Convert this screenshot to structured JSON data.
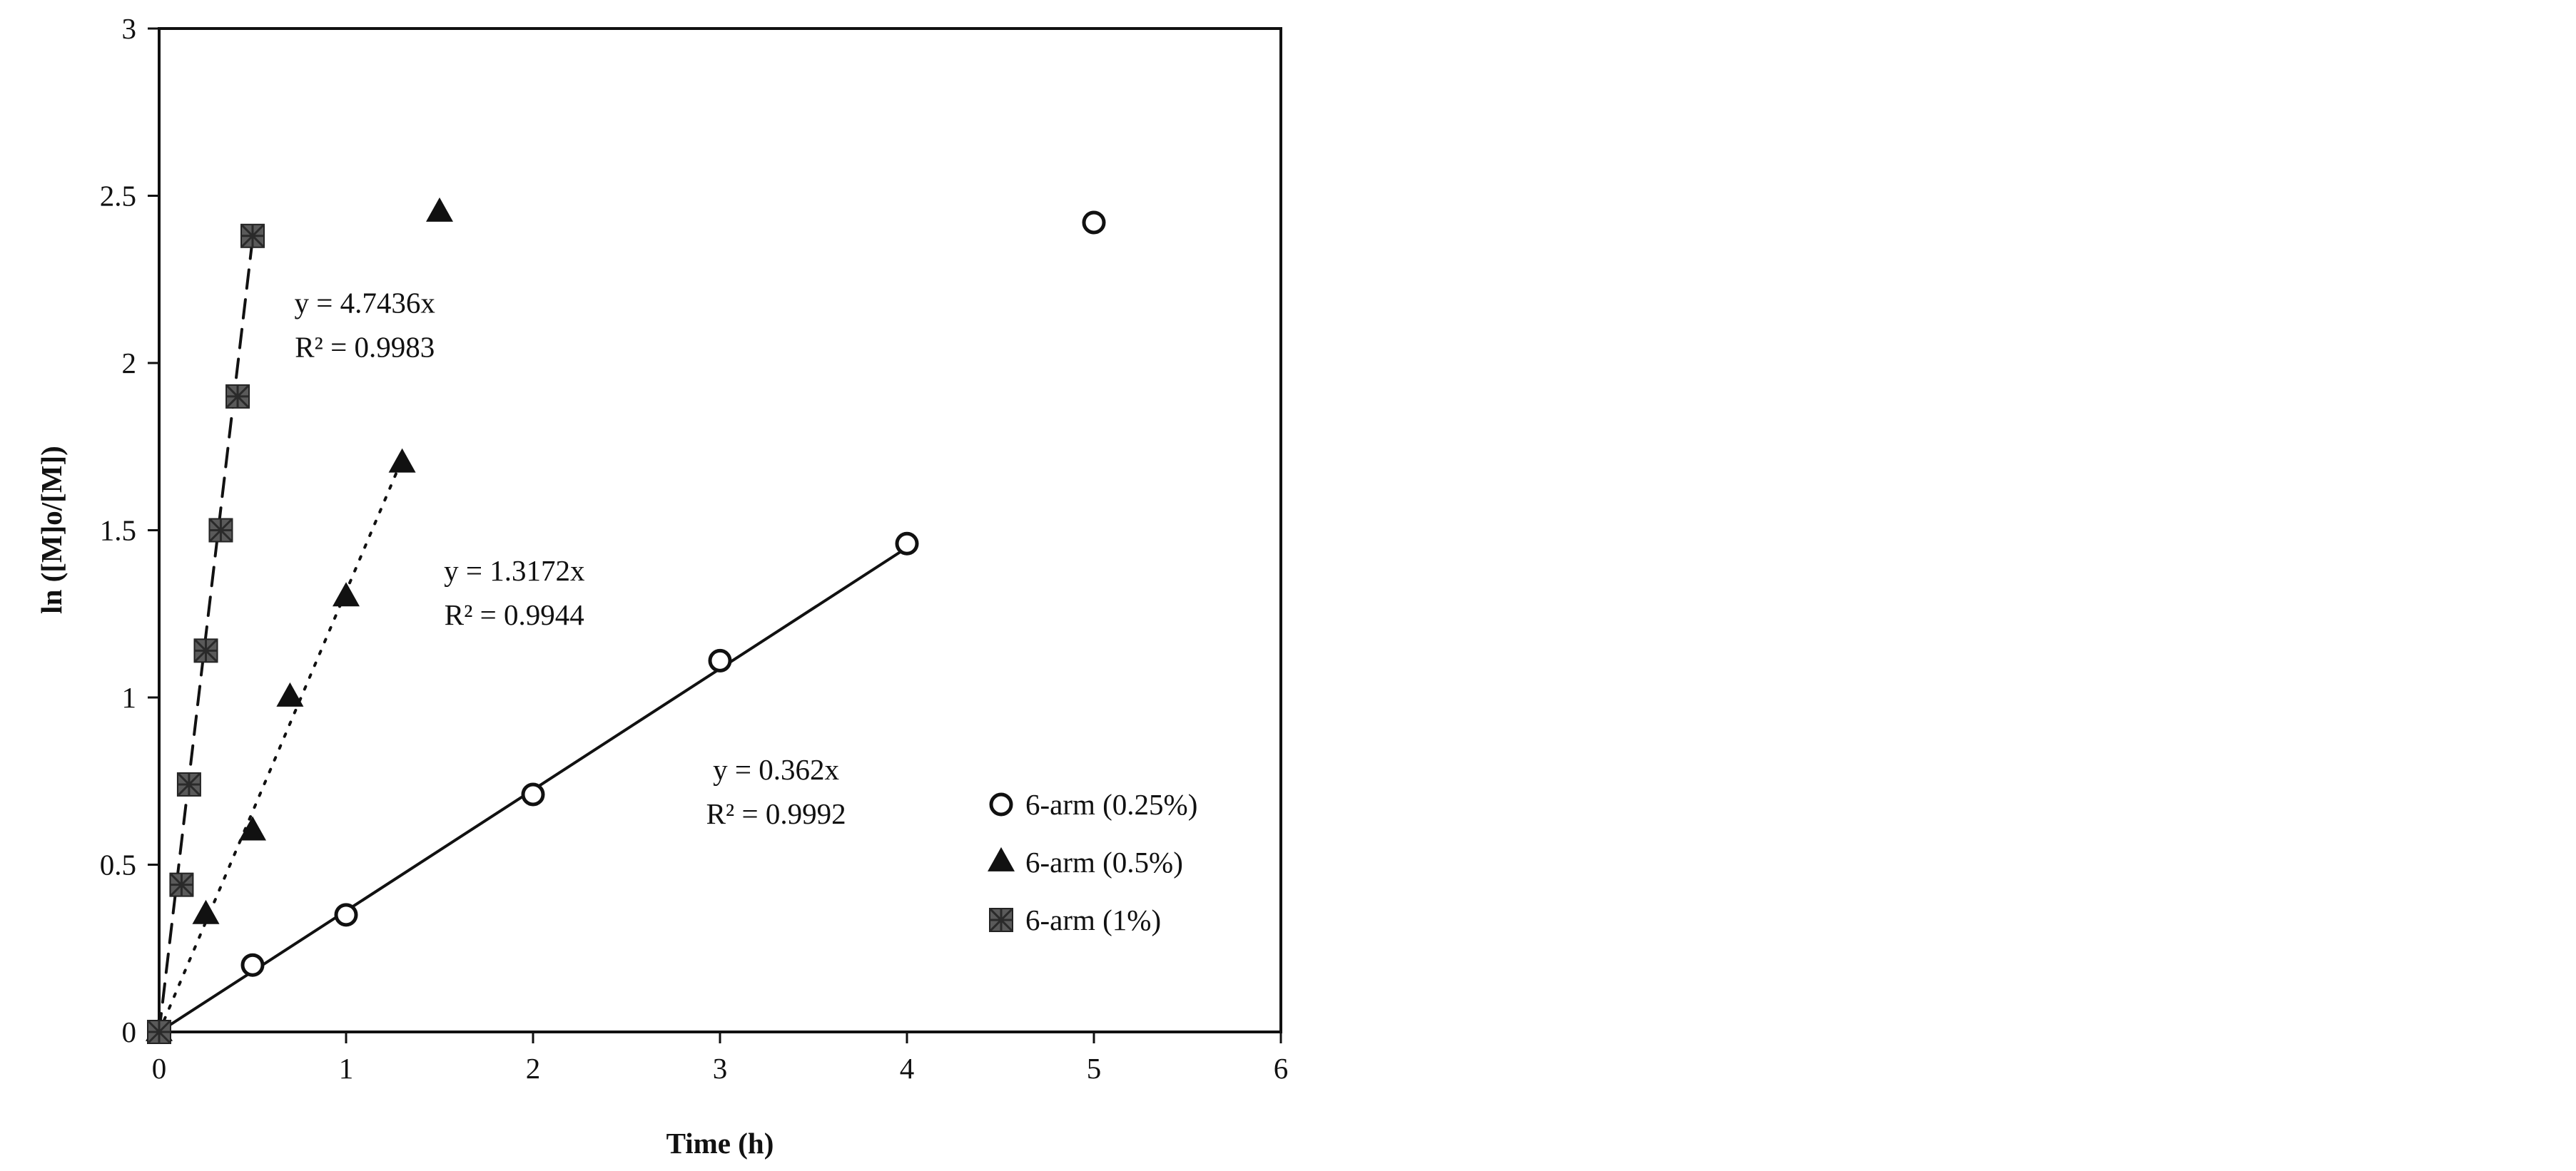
{
  "chart_data": {
    "type": "scatter",
    "title": "",
    "xlabel": "Time (h)",
    "ylabel": "ln ([M]o/[M])",
    "xlim": [
      0,
      6
    ],
    "ylim": [
      0,
      3
    ],
    "x_ticks": [
      "0",
      "1",
      "2",
      "3",
      "4",
      "5",
      "6"
    ],
    "y_ticks": [
      "0",
      "0.5",
      "1",
      "1.5",
      "2",
      "2.5",
      "3"
    ],
    "grid": false,
    "legend_position": "right-middle",
    "series": [
      {
        "name": "6-arm (0.25%)",
        "marker": "open-circle",
        "color": "#111111",
        "x": [
          0,
          0.5,
          1,
          2,
          3,
          4,
          5
        ],
        "y": [
          0,
          0.2,
          0.35,
          0.71,
          1.11,
          1.46,
          2.42
        ],
        "fit": {
          "slope": 0.362,
          "x_end": 4,
          "style": "solid",
          "equation": "y = 0.362x",
          "r2": "R² = 0.9992"
        }
      },
      {
        "name": "6-arm (0.5%)",
        "marker": "filled-triangle",
        "color": "#111111",
        "x": [
          0,
          0.25,
          0.5,
          0.7,
          1.0,
          1.3,
          1.5
        ],
        "y": [
          0,
          0.35,
          0.6,
          1.0,
          1.3,
          1.7,
          2.45
        ],
        "fit": {
          "slope": 1.3172,
          "x_end": 1.3,
          "style": "dotted",
          "equation": "y = 1.3172x",
          "r2": "R² = 0.9944"
        }
      },
      {
        "name": "6-arm (1%)",
        "marker": "textured-square",
        "color": "#5a5a5a",
        "x": [
          0,
          0.12,
          0.16,
          0.25,
          0.33,
          0.42,
          0.5
        ],
        "y": [
          0,
          0.44,
          0.74,
          1.14,
          1.5,
          1.9,
          2.38
        ],
        "fit": {
          "slope": 4.7436,
          "x_end": 0.5,
          "style": "dashed",
          "equation": "y = 4.7436x",
          "r2": "R² = 0.9983"
        }
      }
    ]
  }
}
